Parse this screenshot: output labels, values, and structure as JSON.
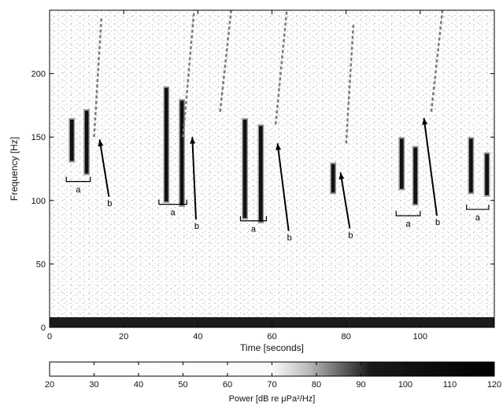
{
  "chart_data": {
    "type": "heatmap",
    "title": "",
    "spectrogram": {
      "xlabel": "Time [seconds]",
      "ylabel": "Frequency [Hz]",
      "xlim": [
        0,
        120
      ],
      "ylim": [
        0,
        250
      ],
      "xticks": [
        0,
        20,
        40,
        60,
        80,
        100
      ],
      "yticks": [
        0,
        50,
        100,
        150,
        200
      ],
      "grid": false,
      "background_noise_band_hz": [
        0,
        8
      ],
      "calls": [
        {
          "t_start": 5.5,
          "t_end": 6.5,
          "f_high": 165,
          "f_low": 130
        },
        {
          "t_start": 9.5,
          "t_end": 10.5,
          "f_high": 172,
          "f_low": 120
        },
        {
          "t_start": 31,
          "t_end": 32,
          "f_high": 190,
          "f_low": 98
        },
        {
          "t_start": 35.2,
          "t_end": 36.2,
          "f_high": 180,
          "f_low": 95
        },
        {
          "t_start": 52.2,
          "t_end": 53.2,
          "f_high": 165,
          "f_low": 85
        },
        {
          "t_start": 56.5,
          "t_end": 57.5,
          "f_high": 160,
          "f_low": 82
        },
        {
          "t_start": 76,
          "t_end": 77,
          "f_high": 130,
          "f_low": 105
        },
        {
          "t_start": 94.5,
          "t_end": 95.5,
          "f_high": 150,
          "f_low": 108
        },
        {
          "t_start": 98.2,
          "t_end": 99.2,
          "f_high": 143,
          "f_low": 96
        },
        {
          "t_start": 113.2,
          "t_end": 114.2,
          "f_high": 150,
          "f_low": 105
        },
        {
          "t_start": 117.5,
          "t_end": 118.5,
          "f_high": 138,
          "f_low": 103
        }
      ],
      "upsweeps": [
        {
          "t_start": 12,
          "f_start": 150,
          "t_end": 14,
          "f_end": 245
        },
        {
          "t_start": 36,
          "f_start": 150,
          "t_end": 39,
          "f_end": 250
        },
        {
          "t_start": 46,
          "f_start": 170,
          "t_end": 49,
          "f_end": 250
        },
        {
          "t_start": 61,
          "f_start": 160,
          "t_end": 64,
          "f_end": 250
        },
        {
          "t_start": 80,
          "f_start": 145,
          "t_end": 82,
          "f_end": 240
        },
        {
          "t_start": 103,
          "f_start": 170,
          "t_end": 106,
          "f_end": 250
        }
      ],
      "bracket_annotations": [
        {
          "label": "a",
          "t_start": 4.5,
          "t_end": 11,
          "f": 115
        },
        {
          "label": "a",
          "t_start": 29.5,
          "t_end": 37,
          "f": 97
        },
        {
          "label": "a",
          "t_start": 51.5,
          "t_end": 58.5,
          "f": 84
        },
        {
          "label": "a",
          "t_start": 93.5,
          "t_end": 100,
          "f": 88
        },
        {
          "label": "a",
          "t_start": 112.5,
          "t_end": 118.5,
          "f": 93
        }
      ],
      "arrow_annotations": [
        {
          "label": "b",
          "from_t": 16,
          "from_f": 103,
          "to_t": 13.5,
          "to_f": 148
        },
        {
          "label": "b",
          "from_t": 39.5,
          "from_f": 85,
          "to_t": 38.5,
          "to_f": 150
        },
        {
          "label": "b",
          "from_t": 64.5,
          "from_f": 76,
          "to_t": 61.5,
          "to_f": 145
        },
        {
          "label": "b",
          "from_t": 81,
          "from_f": 78,
          "to_t": 78.5,
          "to_f": 122
        },
        {
          "label": "b",
          "from_t": 104.5,
          "from_f": 88,
          "to_t": 101,
          "to_f": 165
        }
      ]
    },
    "colorbar": {
      "label": "Power [dB re μPa²/Hz]",
      "ticks": [
        20,
        30,
        40,
        50,
        60,
        70,
        80,
        90,
        100,
        110,
        120
      ],
      "range": [
        20,
        120
      ],
      "colormap": [
        {
          "value": 20,
          "color": "#ffffff"
        },
        {
          "value": 70,
          "color": "#fafafa"
        },
        {
          "value": 78,
          "color": "#bdbdbd"
        },
        {
          "value": 85,
          "color": "#6a6a6a"
        },
        {
          "value": 92,
          "color": "#1a1a1a"
        },
        {
          "value": 120,
          "color": "#000000"
        }
      ]
    }
  }
}
